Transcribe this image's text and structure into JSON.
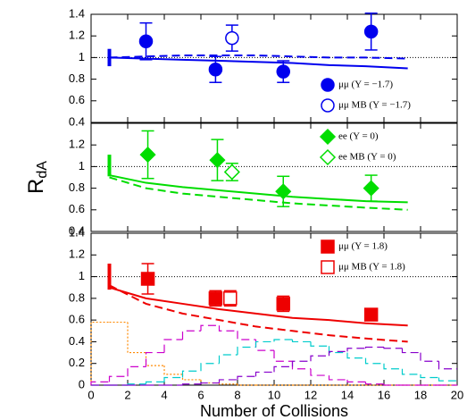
{
  "chart_data": [
    {
      "type": "errorbar",
      "xlim": [
        0,
        20
      ],
      "xticks": [
        0,
        2,
        4,
        6,
        8,
        10,
        12,
        14,
        16,
        18,
        20
      ],
      "ylim": [
        0.4,
        1.4
      ],
      "yticks": [
        0.4,
        0.6,
        0.8,
        1,
        1.2,
        1.4
      ],
      "hline": 1,
      "legend": "lower right",
      "series": [
        {
          "name": "μμ (Y = −1.7)",
          "kind": "points",
          "marker": "circle",
          "filled": true,
          "color": "#0000ee",
          "x": [
            3.0,
            6.8,
            10.5,
            15.3
          ],
          "values": [
            1.15,
            0.89,
            0.87,
            1.24
          ],
          "errors": [
            0.17,
            0.12,
            0.1,
            0.17
          ]
        },
        {
          "name": "μμ MB (Y = −1.7)",
          "kind": "points",
          "marker": "circle",
          "filled": false,
          "color": "#0000ee",
          "x": [
            7.7
          ],
          "values": [
            1.18
          ],
          "errors": [
            0.12
          ]
        },
        {
          "kind": "bar-error",
          "color": "#0000ee",
          "x": [
            1
          ],
          "values": [
            1
          ],
          "errors": [
            0.08
          ]
        },
        {
          "kind": "line",
          "style": "solid",
          "color": "#0000ee",
          "x": [
            1,
            3,
            5,
            7,
            9,
            11,
            13,
            15,
            17.3
          ],
          "values": [
            1.0,
            0.99,
            0.98,
            0.97,
            0.96,
            0.95,
            0.93,
            0.92,
            0.9
          ]
        },
        {
          "kind": "line",
          "style": "dashed",
          "color": "#0000ee",
          "x": [
            1,
            3,
            5,
            7,
            9,
            11,
            13,
            15,
            17.3
          ],
          "values": [
            1.0,
            1.01,
            1.02,
            1.02,
            1.02,
            1.01,
            1.0,
            1.0,
            0.99
          ]
        }
      ]
    },
    {
      "type": "errorbar",
      "xlim": [
        0,
        20
      ],
      "xticks": [
        0,
        2,
        4,
        6,
        8,
        10,
        12,
        14,
        16,
        18,
        20
      ],
      "ylim": [
        0.4,
        1.4
      ],
      "yticks": [
        0.4,
        0.6,
        0.8,
        1,
        1.2
      ],
      "hline": 1,
      "legend": "upper right",
      "y_label": {
        "main": "R",
        "sub": "dA"
      },
      "series": [
        {
          "name": "ee (Y = 0)",
          "kind": "points",
          "marker": "diamond",
          "filled": true,
          "color": "#00dd00",
          "x": [
            3.1,
            6.9,
            10.5,
            15.3
          ],
          "values": [
            1.11,
            1.06,
            0.77,
            0.8
          ],
          "errors": [
            0.22,
            0.19,
            0.14,
            0.12
          ]
        },
        {
          "name": "ee MB (Y = 0)",
          "kind": "points",
          "marker": "diamond",
          "filled": false,
          "color": "#00dd00",
          "x": [
            7.7
          ],
          "values": [
            0.95
          ],
          "errors": [
            0.08
          ]
        },
        {
          "kind": "bar-error",
          "color": "#00dd00",
          "x": [
            1
          ],
          "values": [
            1.01
          ],
          "errors": [
            0.1
          ]
        },
        {
          "kind": "line",
          "style": "solid",
          "color": "#00dd00",
          "x": [
            1,
            3,
            5,
            7,
            9,
            11,
            13,
            15,
            17.3
          ],
          "values": [
            0.92,
            0.85,
            0.81,
            0.78,
            0.75,
            0.72,
            0.7,
            0.68,
            0.67
          ]
        },
        {
          "kind": "line",
          "style": "dashed",
          "color": "#00dd00",
          "x": [
            1,
            3,
            5,
            7,
            9,
            11,
            13,
            15,
            17.3
          ],
          "values": [
            0.9,
            0.8,
            0.75,
            0.72,
            0.69,
            0.66,
            0.64,
            0.62,
            0.6
          ]
        }
      ]
    },
    {
      "type": "errorbar",
      "xlim": [
        0,
        20
      ],
      "xticks": [
        0,
        2,
        4,
        6,
        8,
        10,
        12,
        14,
        16,
        18,
        20
      ],
      "ylim": [
        0,
        1.4
      ],
      "yticks": [
        0,
        0.2,
        0.4,
        0.6,
        0.8,
        1,
        1.2,
        1.4
      ],
      "hline": 1,
      "legend": "upper right",
      "x_label": "Number of Collisions",
      "series": [
        {
          "name": "μμ (Y = 1.8)",
          "kind": "points",
          "marker": "square",
          "filled": true,
          "color": "#ee0000",
          "x": [
            3.1,
            6.8,
            10.5,
            15.3
          ],
          "values": [
            0.98,
            0.8,
            0.75,
            0.65
          ],
          "errors": [
            0.14,
            0.07,
            0.07,
            0.05
          ]
        },
        {
          "name": "μμ MB (Y = 1.8)",
          "kind": "points",
          "marker": "square",
          "filled": false,
          "color": "#ee0000",
          "x": [
            7.6
          ],
          "values": [
            0.8
          ],
          "errors": [
            0.07
          ]
        },
        {
          "kind": "bar-error",
          "color": "#ee0000",
          "x": [
            1
          ],
          "values": [
            1.0
          ],
          "errors": [
            0.12
          ]
        },
        {
          "kind": "line",
          "style": "solid",
          "color": "#ee0000",
          "x": [
            1,
            3,
            5,
            7,
            9,
            11,
            13,
            15,
            17.3
          ],
          "values": [
            0.9,
            0.8,
            0.75,
            0.7,
            0.66,
            0.62,
            0.6,
            0.57,
            0.55
          ]
        },
        {
          "kind": "line",
          "style": "dashed",
          "color": "#ee0000",
          "x": [
            1,
            3,
            5,
            7,
            9,
            11,
            13,
            15,
            17.3
          ],
          "values": [
            0.92,
            0.75,
            0.66,
            0.6,
            0.54,
            0.5,
            0.46,
            0.43,
            0.4
          ]
        },
        {
          "kind": "histogram",
          "style": "dotted",
          "color": "#ff8800",
          "bins": [
            0,
            1,
            2,
            3,
            4,
            5,
            6,
            7,
            8,
            9,
            10,
            11,
            12,
            13,
            14,
            15,
            16,
            17,
            18,
            19,
            20
          ],
          "values": [
            0.58,
            0.58,
            0.3,
            0.18,
            0.1,
            0.05,
            0.02,
            0.01,
            0,
            0,
            0,
            0,
            0,
            0,
            0,
            0,
            0,
            0,
            0,
            0
          ]
        },
        {
          "kind": "histogram",
          "style": "dashed",
          "color": "#cc00cc",
          "bins": [
            0,
            1,
            2,
            3,
            4,
            5,
            6,
            7,
            8,
            9,
            10,
            11,
            12,
            13,
            14,
            15,
            16,
            17,
            18,
            19,
            20
          ],
          "values": [
            0.03,
            0.08,
            0.17,
            0.3,
            0.42,
            0.5,
            0.55,
            0.5,
            0.42,
            0.32,
            0.22,
            0.15,
            0.09,
            0.05,
            0.03,
            0.01,
            0,
            0,
            0,
            0
          ]
        },
        {
          "kind": "histogram",
          "style": "dashed",
          "color": "#00cccc",
          "bins": [
            0,
            1,
            2,
            3,
            4,
            5,
            6,
            7,
            8,
            9,
            10,
            11,
            12,
            13,
            14,
            15,
            16,
            17,
            18,
            19,
            20
          ],
          "values": [
            0,
            0,
            0.01,
            0.03,
            0.07,
            0.13,
            0.2,
            0.28,
            0.35,
            0.4,
            0.42,
            0.4,
            0.36,
            0.3,
            0.25,
            0.2,
            0.15,
            0.1,
            0.07,
            0.04
          ]
        },
        {
          "kind": "histogram",
          "style": "dashed",
          "color": "#8800cc",
          "bins": [
            0,
            1,
            2,
            3,
            4,
            5,
            6,
            7,
            8,
            9,
            10,
            11,
            12,
            13,
            14,
            15,
            16,
            17,
            18,
            19,
            20
          ],
          "values": [
            0,
            0,
            0,
            0,
            0,
            0.01,
            0.02,
            0.05,
            0.08,
            0.12,
            0.17,
            0.22,
            0.27,
            0.31,
            0.34,
            0.35,
            0.34,
            0.3,
            0.22,
            0.15
          ]
        }
      ]
    }
  ]
}
